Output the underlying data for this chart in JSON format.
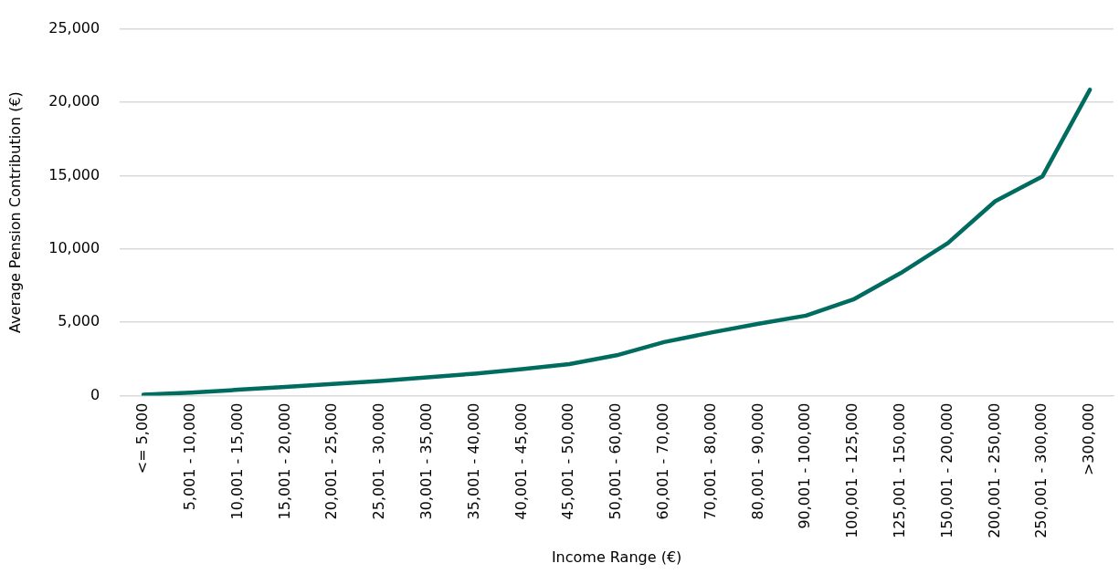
{
  "chart_data": {
    "type": "line",
    "xlabel": "Income Range (€)",
    "ylabel": "Average Pension Contribution (€)",
    "categories": [
      "<= 5,000",
      "5,001 - 10,000",
      "10,001 - 15,000",
      "15,001 - 20,000",
      "20,001 - 25,000",
      "25,001 - 30,000",
      "30,001 - 35,000",
      "35,001 - 40,000",
      "40,001 - 45,000",
      "45,001 - 50,000",
      "50,001 - 60,000",
      "60,001 - 70,000",
      "70,001 - 80,000",
      "80,001 - 90,000",
      "90,001 - 100,000",
      "100,001 - 125,000",
      "125,001 - 150,000",
      "150,001 - 200,000",
      "200,001 - 250,000",
      "250,001 - 300,000",
      ">300,000"
    ],
    "series": [
      {
        "color": "#006b5f",
        "values": [
          70,
          200,
          400,
          600,
          800,
          1000,
          1250,
          1500,
          1800,
          2150,
          2750,
          3650,
          4300,
          4900,
          5450,
          6550,
          8350,
          10400,
          13250,
          14950,
          20850
        ]
      }
    ],
    "ylim": [
      0,
      25000
    ],
    "yticks": [
      0,
      {
        "value": 5000,
        "label": "5,000"
      },
      {
        "value": 10000,
        "label": "10,000"
      },
      {
        "value": 15000,
        "label": "15,000"
      },
      {
        "value": 20000,
        "label": "20,000"
      },
      {
        "value": 25000,
        "label": "25,000"
      }
    ],
    "grid": "y",
    "legend": false,
    "marker": "none",
    "line_style": "solid"
  }
}
